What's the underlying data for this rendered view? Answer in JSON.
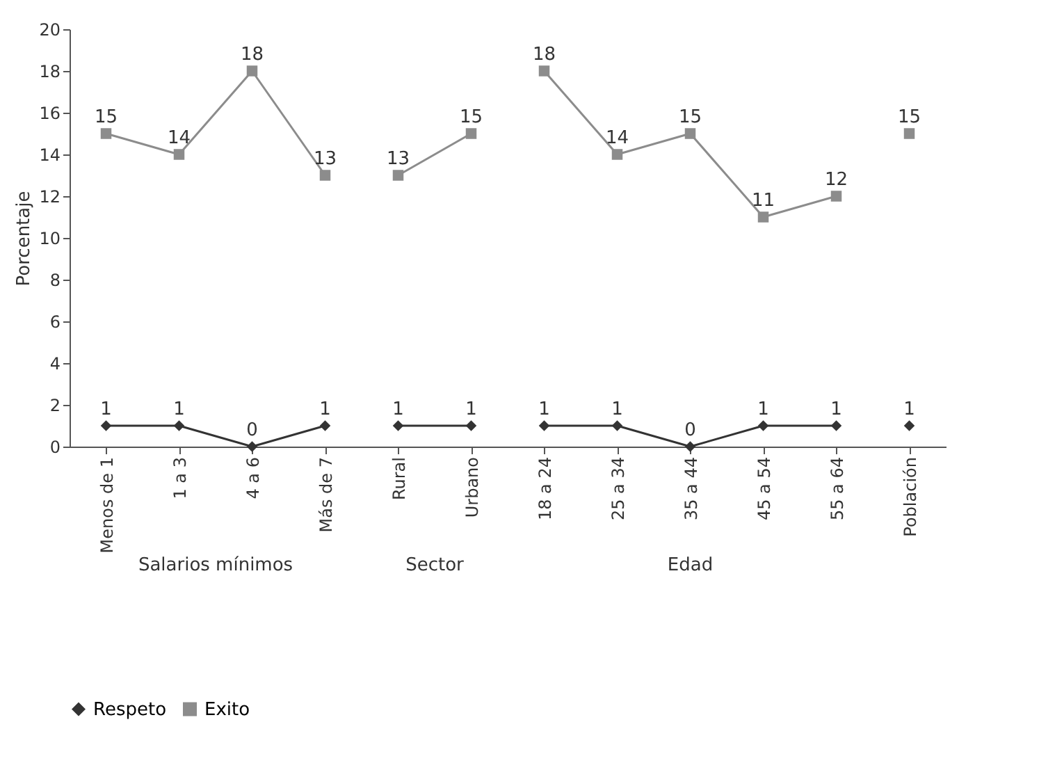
{
  "chart_data": {
    "type": "line",
    "ylabel": "Porcentaje",
    "categories": [
      "Menos de 1",
      "1 a 3",
      "4 a 6",
      "Más de 7",
      "Rural",
      "Urbano",
      "18 a 24",
      "25 a 34",
      "35 a 44",
      "45 a 54",
      "55 a 64",
      "Población"
    ],
    "series": [
      {
        "name": "Respeto",
        "color": "#333333",
        "marker": "diamond",
        "values": [
          1,
          1,
          0,
          1,
          null,
          null,
          null,
          null,
          null,
          null,
          null,
          null
        ]
      },
      {
        "color": "#333333",
        "marker": "diamond",
        "values": [
          null,
          null,
          null,
          null,
          1,
          1,
          null,
          null,
          null,
          null,
          null,
          null
        ]
      },
      {
        "color": "#333333",
        "marker": "diamond",
        "values": [
          null,
          null,
          null,
          null,
          null,
          null,
          1,
          1,
          0,
          1,
          1,
          null
        ]
      },
      {
        "color": "#333333",
        "marker": "diamond",
        "values": [
          null,
          null,
          null,
          null,
          null,
          null,
          null,
          null,
          null,
          null,
          null,
          1
        ]
      },
      {
        "name": "Exito",
        "color": "#8c8c8c",
        "marker": "square",
        "values": [
          15,
          14,
          18,
          13,
          null,
          null,
          null,
          null,
          null,
          null,
          null,
          null
        ]
      },
      {
        "color": "#8c8c8c",
        "marker": "square",
        "values": [
          null,
          null,
          null,
          null,
          13,
          15,
          null,
          null,
          null,
          null,
          null,
          null
        ]
      },
      {
        "color": "#8c8c8c",
        "marker": "square",
        "values": [
          null,
          null,
          null,
          null,
          null,
          null,
          18,
          14,
          15,
          11,
          12,
          null
        ]
      },
      {
        "color": "#8c8c8c",
        "marker": "square",
        "values": [
          null,
          null,
          null,
          null,
          null,
          null,
          null,
          null,
          null,
          null,
          null,
          15
        ]
      }
    ],
    "annotations": [
      "Salarios mínimos",
      "Sector",
      "Edad"
    ],
    "ylim": [
      0,
      20
    ],
    "yticks": [
      0,
      2,
      4,
      6,
      8,
      10,
      12,
      14,
      16,
      18,
      20
    ],
    "data_labels": true,
    "grid": false,
    "legend": "bottom",
    "line_style": "solid"
  }
}
